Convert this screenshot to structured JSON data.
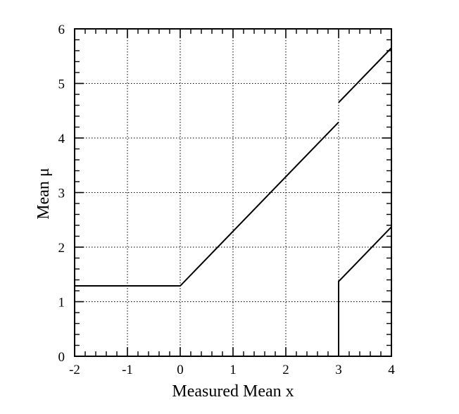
{
  "chart_data": {
    "type": "line",
    "title": "",
    "xlabel": "Measured Mean x",
    "ylabel": "Mean μ",
    "xlim": [
      -2,
      4
    ],
    "ylim": [
      0,
      6
    ],
    "x_ticks": [
      -2,
      -1,
      0,
      1,
      2,
      3,
      4
    ],
    "y_ticks": [
      0,
      1,
      2,
      3,
      4,
      5,
      6
    ],
    "x_tick_labels": [
      "-2",
      "-1",
      "0",
      "1",
      "2",
      "3",
      "4"
    ],
    "y_tick_labels": [
      "0",
      "1",
      "2",
      "3",
      "4",
      "5",
      "6"
    ],
    "grid": true,
    "grid_style": "dotted",
    "series": [
      {
        "points": [
          [
            -2,
            1.29
          ],
          [
            0,
            1.29
          ],
          [
            3,
            4.29
          ]
        ]
      },
      {
        "points": [
          [
            3,
            4.65
          ],
          [
            4,
            5.65
          ]
        ]
      },
      {
        "points": [
          [
            3,
            0
          ],
          [
            3,
            1.37
          ],
          [
            4,
            2.37
          ]
        ]
      }
    ],
    "colors": {
      "line": "#000000",
      "grid": "#000000",
      "background": "#ffffff"
    }
  }
}
